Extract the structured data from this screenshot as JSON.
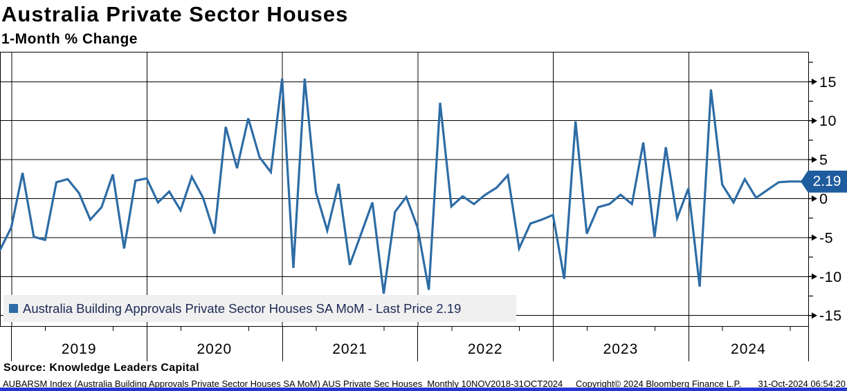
{
  "header": {
    "title": "Australia Private Sector Houses",
    "subtitle": "1-Month % Change"
  },
  "legend": {
    "marker_color": "#2d6ca5",
    "label": "Australia Building Approvals Private Sector Houses SA MoM - Last Price 2.19"
  },
  "price_tag": {
    "value": "2.19",
    "bg_color": "#1e5c9e"
  },
  "source": "Source: Knowledge Leaders Capital",
  "footer": {
    "left": "AUBARSM Index (Australia Building Approvals Private Sector Houses SA MoM) AUS Private Sec Houses  Monthly 10NOV2018-31OCT2024",
    "copyright": "Copyright© 2024 Bloomberg Finance L.P.",
    "timestamp": "31-Oct-2024 06:54:20"
  },
  "chart_data": {
    "type": "line",
    "title": "Australia Private Sector Houses",
    "subtitle": "1-Month % Change",
    "series_name": "Australia Building Approvals Private Sector Houses SA MoM",
    "frequency": "monthly",
    "period": "10NOV2018-31OCT2024",
    "last_price": 2.19,
    "line_color": "#2d6ca5",
    "grid": true,
    "ylim": [
      -16.5,
      18.8
    ],
    "yticks": [
      15,
      10,
      5,
      0,
      -5,
      -10,
      -15
    ],
    "x_year_labels": [
      "2019",
      "2020",
      "2021",
      "2022",
      "2023",
      "2024"
    ],
    "points": [
      {
        "date": "2018-11",
        "value": -6.6
      },
      {
        "date": "2018-12",
        "value": -3.7
      },
      {
        "date": "2019-01",
        "value": 3.3
      },
      {
        "date": "2019-02",
        "value": -4.9
      },
      {
        "date": "2019-03",
        "value": -5.3
      },
      {
        "date": "2019-04",
        "value": 2.1
      },
      {
        "date": "2019-05",
        "value": 2.5
      },
      {
        "date": "2019-06",
        "value": 0.7
      },
      {
        "date": "2019-07",
        "value": -2.7
      },
      {
        "date": "2019-08",
        "value": -1.1
      },
      {
        "date": "2019-09",
        "value": 3.1
      },
      {
        "date": "2019-10",
        "value": -6.4
      },
      {
        "date": "2019-11",
        "value": 2.3
      },
      {
        "date": "2019-12",
        "value": 2.6
      },
      {
        "date": "2020-01",
        "value": -0.5
      },
      {
        "date": "2020-02",
        "value": 0.9
      },
      {
        "date": "2020-03",
        "value": -1.5
      },
      {
        "date": "2020-04",
        "value": 2.8
      },
      {
        "date": "2020-05",
        "value": 0.1
      },
      {
        "date": "2020-06",
        "value": -4.5
      },
      {
        "date": "2020-07",
        "value": 9.2
      },
      {
        "date": "2020-08",
        "value": 3.9
      },
      {
        "date": "2020-09",
        "value": 10.3
      },
      {
        "date": "2020-10",
        "value": 5.3
      },
      {
        "date": "2020-11",
        "value": 3.4
      },
      {
        "date": "2020-12",
        "value": 15.4
      },
      {
        "date": "2021-01",
        "value": -8.9
      },
      {
        "date": "2021-02",
        "value": 15.4
      },
      {
        "date": "2021-03",
        "value": 0.8
      },
      {
        "date": "2021-04",
        "value": -4.1
      },
      {
        "date": "2021-05",
        "value": 1.9
      },
      {
        "date": "2021-06",
        "value": -8.5
      },
      {
        "date": "2021-07",
        "value": -4.5
      },
      {
        "date": "2021-08",
        "value": -0.5
      },
      {
        "date": "2021-09",
        "value": -12.2
      },
      {
        "date": "2021-10",
        "value": -1.7
      },
      {
        "date": "2021-11",
        "value": 0.2
      },
      {
        "date": "2021-12",
        "value": -3.7
      },
      {
        "date": "2022-01",
        "value": -11.7
      },
      {
        "date": "2022-02",
        "value": 12.3
      },
      {
        "date": "2022-03",
        "value": -1.0
      },
      {
        "date": "2022-04",
        "value": 0.3
      },
      {
        "date": "2022-05",
        "value": -0.7
      },
      {
        "date": "2022-06",
        "value": 0.5
      },
      {
        "date": "2022-07",
        "value": 1.4
      },
      {
        "date": "2022-08",
        "value": 3.0
      },
      {
        "date": "2022-09",
        "value": -6.4
      },
      {
        "date": "2022-10",
        "value": -3.2
      },
      {
        "date": "2022-11",
        "value": -2.7
      },
      {
        "date": "2022-12",
        "value": -2.1
      },
      {
        "date": "2023-01",
        "value": -10.3
      },
      {
        "date": "2023-02",
        "value": 9.9
      },
      {
        "date": "2023-03",
        "value": -4.5
      },
      {
        "date": "2023-04",
        "value": -1.1
      },
      {
        "date": "2023-05",
        "value": -0.7
      },
      {
        "date": "2023-06",
        "value": 0.5
      },
      {
        "date": "2023-07",
        "value": -0.7
      },
      {
        "date": "2023-08",
        "value": 7.2
      },
      {
        "date": "2023-09",
        "value": -4.9
      },
      {
        "date": "2023-10",
        "value": 6.6
      },
      {
        "date": "2023-11",
        "value": -2.5
      },
      {
        "date": "2023-12",
        "value": 1.3
      },
      {
        "date": "2024-01",
        "value": -11.3
      },
      {
        "date": "2024-02",
        "value": 14.0
      },
      {
        "date": "2024-03",
        "value": 1.8
      },
      {
        "date": "2024-04",
        "value": -0.5
      },
      {
        "date": "2024-05",
        "value": 2.5
      },
      {
        "date": "2024-06",
        "value": 0.1
      },
      {
        "date": "2024-07",
        "value": 1.1
      },
      {
        "date": "2024-08",
        "value": 2.1
      },
      {
        "date": "2024-09",
        "value": 2.2
      },
      {
        "date": "2024-10",
        "value": 2.19
      }
    ]
  }
}
